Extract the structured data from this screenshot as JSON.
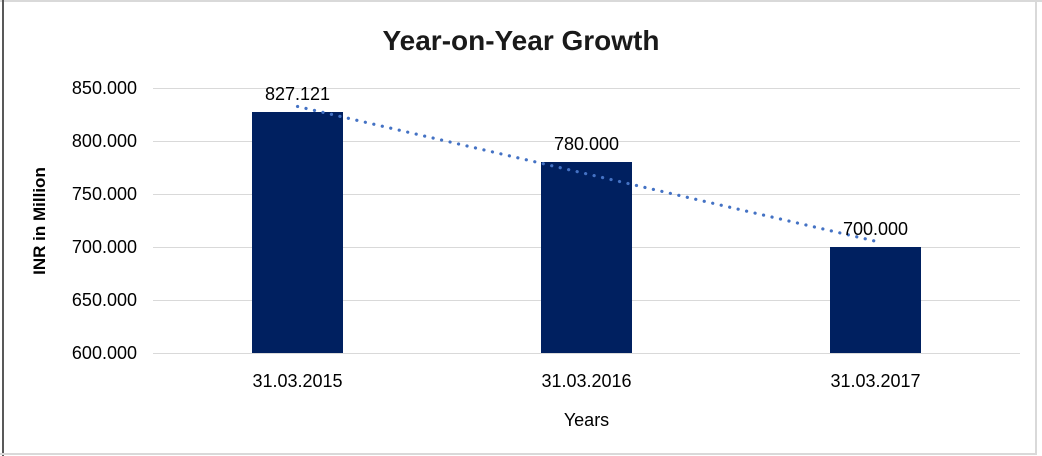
{
  "frame": {
    "background": "#ffffff",
    "border_light": "#d9d9d9",
    "border_dark": "#595959"
  },
  "chart_data": {
    "type": "bar",
    "title": "Year-on-Year Growth",
    "xlabel": "Years",
    "ylabel": "INR in Million",
    "categories": [
      "31.03.2015",
      "31.03.2016",
      "31.03.2017"
    ],
    "values": [
      827.121,
      780.0,
      700.0
    ],
    "data_labels": [
      "827.121",
      "780.000",
      "700.000"
    ],
    "ylim": [
      600,
      850
    ],
    "ytick_step": 50,
    "ytick_labels": [
      "850.000",
      "800.000",
      "750.000",
      "700.000",
      "650.000",
      "600.000"
    ],
    "grid": "horizontal-only",
    "legend": "none",
    "colors": {
      "bar": "#002060",
      "trendline": "#4472C4",
      "gridline": "#d9d9d9",
      "text": "#000000",
      "title_text": "#1a1a1a"
    },
    "trendline": {
      "kind": "linear",
      "style": "dotted",
      "span": "first-to-last-point"
    }
  }
}
